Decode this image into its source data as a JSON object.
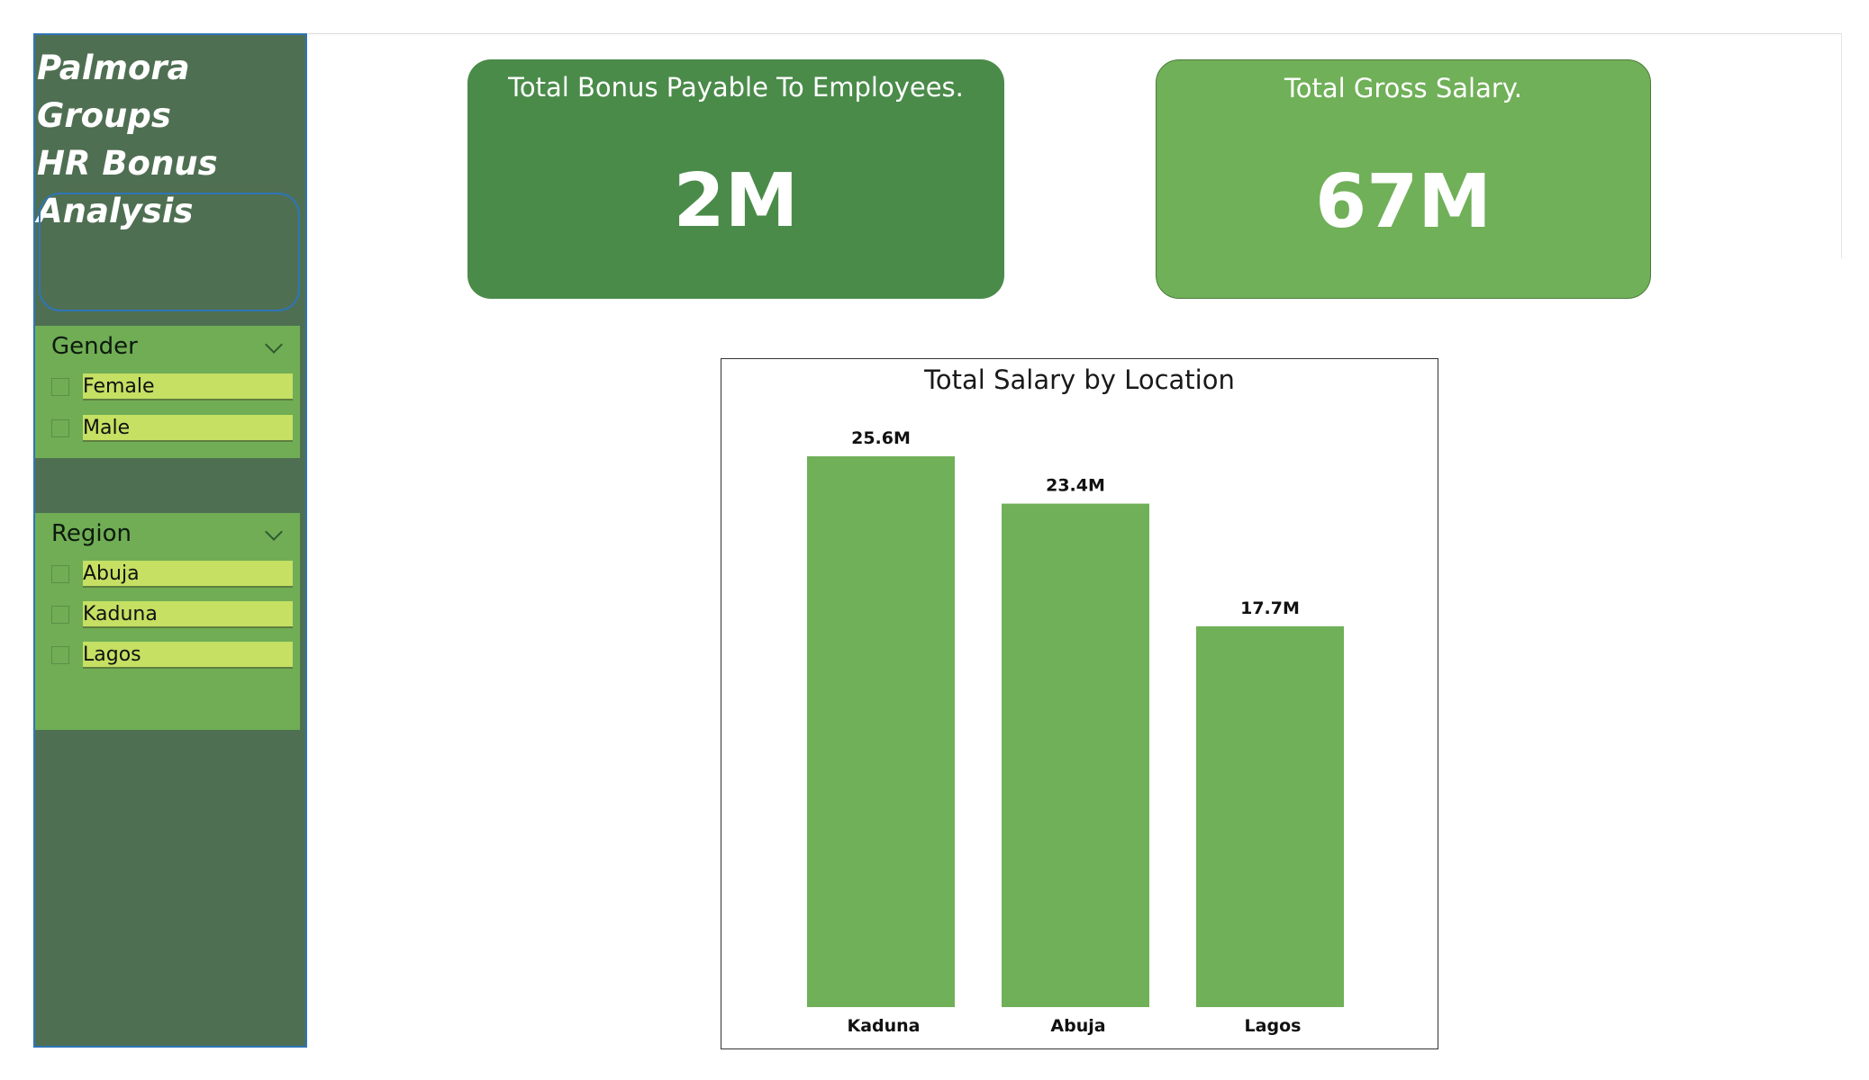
{
  "sidebar": {
    "title": "Palmora Groups\nHR Bonus\nAnalysis",
    "gender_slicer": {
      "header": "Gender",
      "items": [
        {
          "label": "Female",
          "checked": false
        },
        {
          "label": "Male",
          "checked": false
        }
      ]
    },
    "region_slicer": {
      "header": "Region",
      "items": [
        {
          "label": "Abuja",
          "checked": false
        },
        {
          "label": "Kaduna",
          "checked": false
        },
        {
          "label": "Lagos",
          "checked": false
        }
      ]
    }
  },
  "kpis": {
    "bonus": {
      "label": "Total Bonus Payable To Employees.",
      "value": "2M"
    },
    "gross": {
      "label": "Total Gross Salary.",
      "value": "67M"
    }
  },
  "colors": {
    "sidebar_bg": "#4f6f52",
    "slicer_bg": "#70ad55",
    "slicer_item_bg": "#c5e063",
    "kpi_bonus_bg": "#4a8b4a",
    "kpi_gross_bg": "#70b058",
    "bar": "#70b058",
    "accent_border": "#2e75b6"
  },
  "chart_data": {
    "type": "bar",
    "title": "Total Salary by Location",
    "categories": [
      "Kaduna",
      "Abuja",
      "Lagos"
    ],
    "values": [
      25.6,
      23.4,
      17.7
    ],
    "data_labels": [
      "25.6M",
      "23.4M",
      "17.7M"
    ],
    "unit": "M",
    "xlabel": "",
    "ylabel": "",
    "ylim": [
      0,
      25.6
    ],
    "grid": false,
    "legend": "none"
  }
}
